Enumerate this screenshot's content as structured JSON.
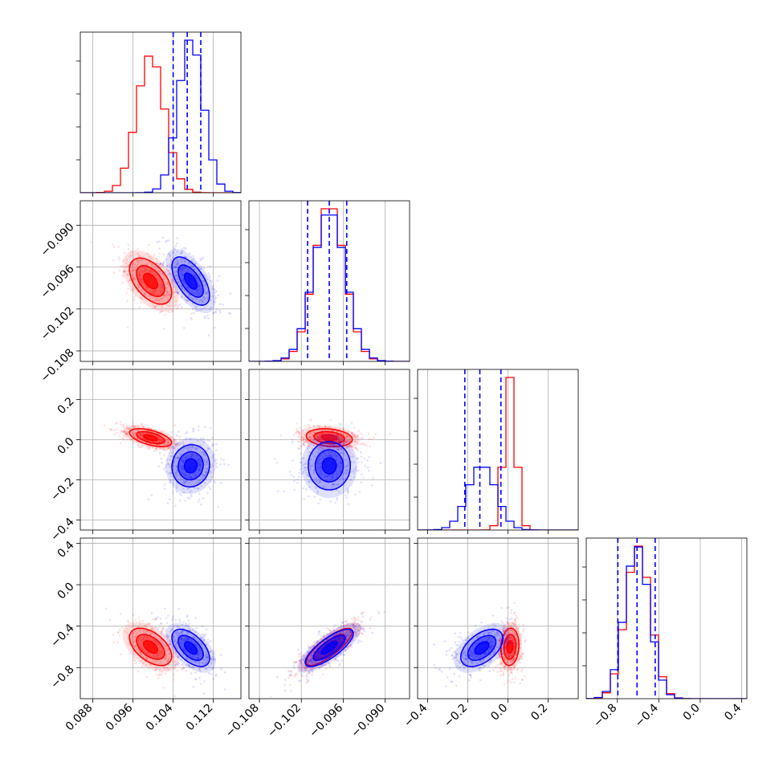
{
  "chart_data": {
    "type": "corner",
    "grid": true,
    "colors": {
      "red": "#ff0000",
      "blue": "#0000ff"
    },
    "parameters": [
      {
        "range": [
          0.0855,
          0.1175
        ],
        "ticks": [
          0.088,
          0.096,
          0.104,
          0.112
        ],
        "tick_labels": [
          "0.088",
          "0.096",
          "0.104",
          "0.112"
        ]
      },
      {
        "range": [
          -0.1095,
          -0.0865
        ],
        "ticks": [
          -0.108,
          -0.102,
          -0.096,
          -0.09
        ],
        "tick_labels": [
          "−0.108",
          "−0.102",
          "−0.096",
          "−0.090"
        ]
      },
      {
        "range": [
          -0.45,
          0.35
        ],
        "ticks": [
          -0.4,
          -0.2,
          0.0,
          0.2
        ],
        "tick_labels": [
          "−0.4",
          "−0.2",
          "0.0",
          "0.2"
        ]
      },
      {
        "range": [
          -1.1,
          0.45
        ],
        "ticks": [
          -0.8,
          -0.4,
          0.0,
          0.4
        ],
        "tick_labels": [
          "−0.8",
          "−0.4",
          "0.0",
          "0.4"
        ]
      }
    ],
    "series": [
      {
        "color": "#ff0000",
        "mean": [
          0.0995,
          -0.098,
          0.01,
          -0.6
        ],
        "sigma": [
          0.0028,
          0.0022,
          0.03,
          0.12
        ],
        "correlations": [
          [
            0,
            1,
            -0.5
          ],
          [
            0,
            2,
            -0.55
          ],
          [
            0,
            3,
            -0.5
          ],
          [
            1,
            2,
            -0.2
          ],
          [
            1,
            3,
            0.82
          ],
          [
            2,
            3,
            0.1
          ]
        ],
        "quantiles_shown": false
      },
      {
        "color": "#0000ff",
        "mean": [
          0.1075,
          -0.098,
          -0.13,
          -0.61
        ],
        "sigma": [
          0.0025,
          0.0023,
          0.07,
          0.12
        ],
        "correlations": [
          [
            0,
            1,
            -0.6
          ],
          [
            0,
            2,
            0.05
          ],
          [
            0,
            3,
            -0.55
          ],
          [
            1,
            2,
            0.0
          ],
          [
            1,
            3,
            0.78
          ],
          [
            2,
            3,
            0.5
          ]
        ],
        "quantiles_shown": true,
        "quantiles": [
          [
            0.104,
            0.1068,
            0.1095
          ],
          [
            -0.1011,
            -0.098,
            -0.0955
          ],
          [
            -0.215,
            -0.14,
            -0.035
          ],
          [
            -0.795,
            -0.61,
            -0.435
          ]
        ]
      }
    ]
  }
}
